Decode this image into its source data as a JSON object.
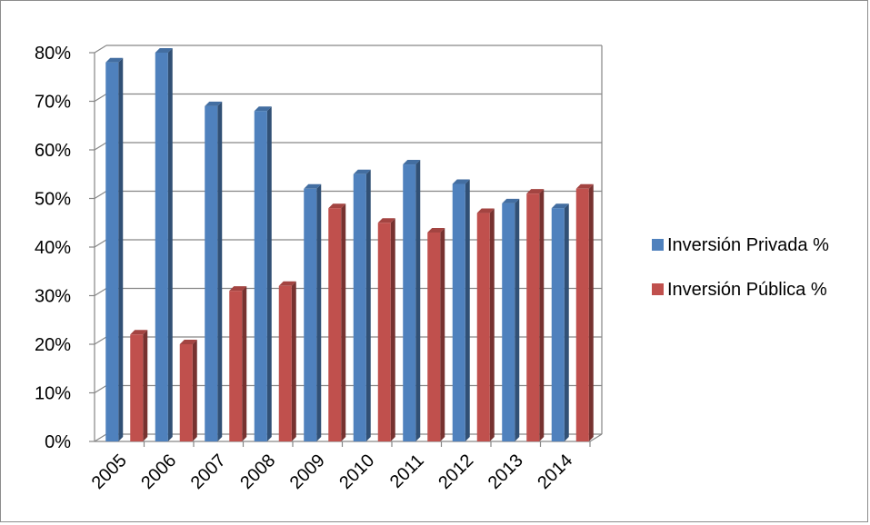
{
  "chart_data": {
    "type": "bar",
    "categories": [
      "2005",
      "2006",
      "2007",
      "2008",
      "2009",
      "2010",
      "2011",
      "2012",
      "2013",
      "2014"
    ],
    "series": [
      {
        "name": "Inversión Privada %",
        "color": "#4f81bd",
        "values": [
          78,
          80,
          69,
          68,
          52,
          55,
          57,
          53,
          49,
          48
        ]
      },
      {
        "name": "Inversión Pública %",
        "color": "#c0504d",
        "values": [
          22,
          20,
          31,
          32,
          48,
          45,
          43,
          47,
          51,
          52
        ]
      }
    ],
    "ylim": [
      0,
      80
    ],
    "yticks": [
      "0%",
      "10%",
      "20%",
      "30%",
      "40%",
      "50%",
      "60%",
      "70%",
      "80%"
    ],
    "grid": true,
    "legend_position": "right",
    "style": "3d-clustered-column"
  }
}
